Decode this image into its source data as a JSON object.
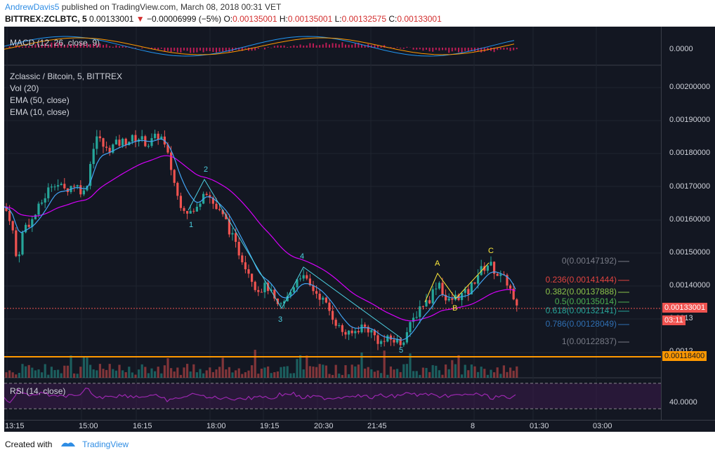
{
  "header": {
    "user": "AndrewDavis5",
    "published_text": "published on TradingView.com, March 08, 2018 00:31 VET",
    "symbol": "BITTREX:ZCLBTC, 5",
    "last": "0.00133001",
    "change_arrow": "▼",
    "change": "−0.00006999 (−5%)",
    "o_label": "O:",
    "o_value": "0.00135001",
    "h_label": "H:",
    "h_value": "0.00135001",
    "l_label": "L:",
    "l_value": "0.00132575",
    "c_label": "C:",
    "c_value": "0.00133001"
  },
  "panes": {
    "macd_label": "MACD (12, 26, close, 9)",
    "macd_axis_value": "0.0000",
    "main_title": "Zclassic / Bitcoin, 5, BITTREX",
    "volume_label": "Vol (20)",
    "ema50_label": "EMA (50, close)",
    "ema10_label": "EMA (10, close)",
    "rsi_label": "RSI (14, close)",
    "rsi_axis_value": "40.0000"
  },
  "price_axis": [
    "0.00200000",
    "0.00190000",
    "0.00180000",
    "0.00170000",
    "0.00160000",
    "0.00150000",
    "0.00140000",
    "0.0013",
    "0.0012"
  ],
  "price_tags": {
    "current": "0.00133001",
    "countdown": "03:11",
    "support": "0.00118400"
  },
  "time_axis": [
    "13:15",
    "15:00",
    "16:15",
    "18:00",
    "19:15",
    "20:30",
    "21:45",
    "8",
    "01:30",
    "03:00"
  ],
  "wave_labels": {
    "impulse": [
      "1",
      "2",
      "3",
      "4",
      "5"
    ],
    "corrective": [
      "A",
      "B",
      "C"
    ]
  },
  "fibonacci": [
    {
      "text": "0(0.00147192)",
      "color": "#787b86"
    },
    {
      "text": "0.236(0.00141444)",
      "color": "#e0433f"
    },
    {
      "text": "0.382(0.00137888)",
      "color": "#8bc34a"
    },
    {
      "text": "0.5(0.00135014)",
      "color": "#4caf50"
    },
    {
      "text": "0.618(0.00132141)",
      "color": "#26a69a"
    },
    {
      "text": "0.786(0.00128049)",
      "color": "#2f6fb3"
    },
    {
      "text": "1(0.00122837)",
      "color": "#787b86"
    }
  ],
  "footer": {
    "created_with": "Created with",
    "brand": "TradingView"
  },
  "colors": {
    "up": "#26a69a",
    "down": "#ef5350",
    "ema50": "#d500f9",
    "ema10": "#42a5f5",
    "support": "#ff9800",
    "background": "#131722"
  },
  "chart_data": {
    "type": "candlestick",
    "series": [
      {
        "name": "ZCL/BTC 5m",
        "close_last": 0.00133001
      },
      {
        "name": "EMA (50, close)"
      },
      {
        "name": "EMA (10, close)"
      }
    ]
  }
}
